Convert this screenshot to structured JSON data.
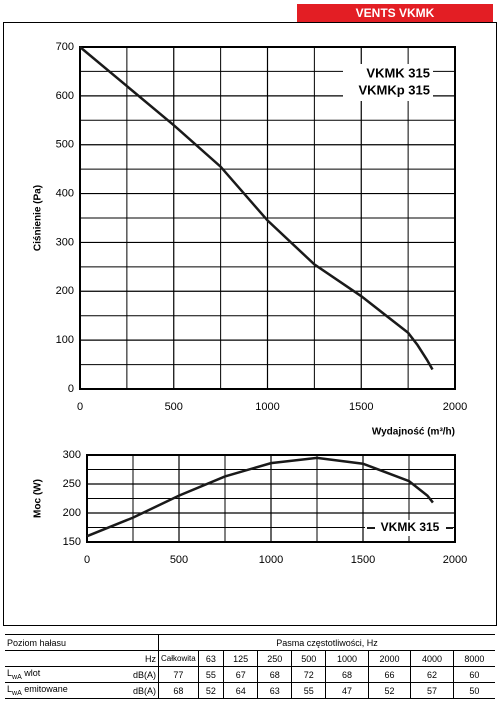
{
  "header": {
    "title": "VENTS VKMK"
  },
  "chart_data": [
    {
      "type": "line",
      "ylabel": "Ciśnienie (Pa)",
      "xlabel": "Wydajność (m³/h)",
      "x": [
        0,
        250,
        500,
        750,
        1000,
        1250,
        1500,
        1750,
        1800,
        1850,
        1880
      ],
      "series": [
        {
          "color": "#1a1a1a",
          "values": [
            700,
            620,
            540,
            455,
            345,
            255,
            190,
            115,
            90,
            60,
            40
          ]
        }
      ],
      "xlim": [
        0,
        2000
      ],
      "ylim": [
        0,
        700
      ],
      "xticks": [
        0,
        500,
        1000,
        1500,
        2000
      ],
      "yticks": [
        0,
        100,
        200,
        300,
        400,
        500,
        600,
        700
      ],
      "minor_xticks": [
        250,
        750,
        1250,
        1750
      ],
      "minor_yticks": [
        50,
        150,
        250,
        350,
        450,
        550,
        650
      ],
      "grid": true,
      "annotation": [
        "VKMK 315",
        "VKMKp 315"
      ]
    },
    {
      "type": "line",
      "ylabel": "Moc (W)",
      "x": [
        0,
        250,
        500,
        750,
        1000,
        1250,
        1500,
        1750,
        1850,
        1880
      ],
      "series": [
        {
          "name": "VKMK 315",
          "color": "#1a1a1a",
          "values": [
            160,
            192,
            230,
            263,
            286,
            295,
            285,
            255,
            230,
            218
          ]
        }
      ],
      "xlim": [
        0,
        2000
      ],
      "ylim": [
        150,
        300
      ],
      "xticks": [
        0,
        500,
        1000,
        1500,
        2000
      ],
      "yticks": [
        150,
        200,
        250,
        300
      ],
      "minor_xticks": [
        250,
        750,
        1250,
        1750
      ],
      "minor_yticks": [
        175,
        225,
        275
      ],
      "grid": true
    }
  ],
  "table": {
    "corner": "Poziom hałasu",
    "band_title": "Pasma częstotliwości, Hz",
    "unit_header": "Hz",
    "columns": [
      "Całkowita",
      63,
      125,
      250,
      500,
      1000,
      2000,
      4000,
      8000
    ],
    "rows": [
      {
        "label": {
          "main": "L",
          "sub": "wA",
          "rest": " wlot"
        },
        "unit": "dB(A)",
        "values": [
          77,
          55,
          67,
          68,
          72,
          68,
          66,
          62,
          60
        ]
      },
      {
        "label": {
          "main": "L",
          "sub": "wA",
          "rest": " emitowane"
        },
        "unit": "dB(A)",
        "values": [
          68,
          52,
          64,
          63,
          55,
          47,
          52,
          57,
          50
        ]
      }
    ]
  }
}
